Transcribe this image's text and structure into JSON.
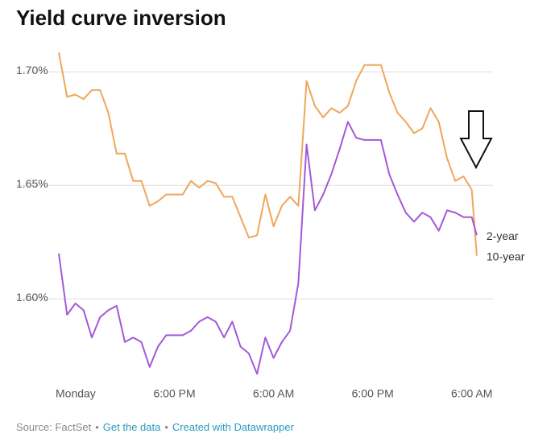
{
  "chart_data": {
    "type": "line",
    "title": "Yield curve inversion",
    "source": "Source: FactSet",
    "links": [
      "Get the data",
      "Created with Datawrapper"
    ],
    "x": [
      0,
      1,
      2,
      3,
      4,
      5,
      6,
      7,
      8,
      9,
      10,
      11,
      12,
      13,
      14,
      15,
      16,
      17,
      18,
      19,
      20,
      21,
      22,
      23,
      24,
      25,
      26,
      27,
      28,
      29,
      30,
      31,
      32,
      33,
      34,
      35,
      36,
      37,
      38,
      39,
      40,
      41,
      42,
      43,
      44,
      45,
      46,
      47,
      48,
      49,
      50,
      50.6
    ],
    "xlim": [
      0,
      51
    ],
    "xticks": [
      {
        "value": 0,
        "label": "Monday"
      },
      {
        "value": 14,
        "label": "6:00 PM"
      },
      {
        "value": 26,
        "label": "6:00 AM"
      },
      {
        "value": 38,
        "label": "6:00 PM"
      },
      {
        "value": 50,
        "label": "6:00 AM"
      }
    ],
    "ylim": [
      1.565,
      1.715
    ],
    "yticks": [
      {
        "value": 1.6,
        "label": "1.60%"
      },
      {
        "value": 1.65,
        "label": "1.65%"
      },
      {
        "value": 1.7,
        "label": "1.70%"
      }
    ],
    "grid": true,
    "series": [
      {
        "name": "10-year",
        "color": "#f0a65a",
        "values": [
          1.7085,
          1.689,
          1.69,
          1.688,
          1.692,
          1.692,
          1.682,
          1.664,
          1.664,
          1.652,
          1.652,
          1.641,
          1.643,
          1.646,
          1.646,
          1.646,
          1.652,
          1.649,
          1.652,
          1.651,
          1.645,
          1.645,
          1.636,
          1.627,
          1.628,
          1.646,
          1.632,
          1.641,
          1.645,
          1.641,
          1.696,
          1.685,
          1.68,
          1.684,
          1.682,
          1.685,
          1.696,
          1.703,
          1.703,
          1.703,
          1.691,
          1.682,
          1.678,
          1.673,
          1.675,
          1.684,
          1.678,
          1.662,
          1.652,
          1.654,
          1.648,
          1.619
        ]
      },
      {
        "name": "2-year",
        "color": "#a259d9",
        "values": [
          1.62,
          1.593,
          1.598,
          1.595,
          1.583,
          1.592,
          1.595,
          1.597,
          1.581,
          1.583,
          1.581,
          1.57,
          1.579,
          1.584,
          1.584,
          1.584,
          1.586,
          1.59,
          1.592,
          1.59,
          1.583,
          1.59,
          1.579,
          1.576,
          1.567,
          1.583,
          1.574,
          1.581,
          1.586,
          1.607,
          1.668,
          1.639,
          1.646,
          1.655,
          1.666,
          1.678,
          1.671,
          1.67,
          1.67,
          1.67,
          1.655,
          1.646,
          1.638,
          1.634,
          1.638,
          1.636,
          1.63,
          1.639,
          1.638,
          1.636,
          1.636,
          1.628
        ]
      }
    ]
  }
}
